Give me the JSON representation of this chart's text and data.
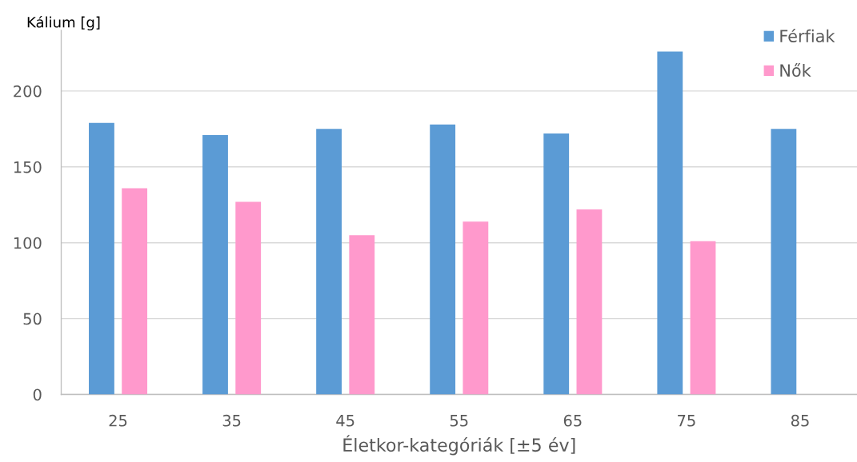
{
  "chart_data": {
    "type": "bar",
    "categories": [
      "25",
      "35",
      "45",
      "55",
      "65",
      "75",
      "85"
    ],
    "series": [
      {
        "name": "Férfiak",
        "color": "#5b9bd5",
        "values": [
          179,
          171,
          175,
          178,
          172,
          226,
          175
        ]
      },
      {
        "name": "Nők",
        "color": "#ff99cc",
        "values": [
          136,
          127,
          105,
          114,
          122,
          101,
          null
        ]
      }
    ],
    "xlabel": "Életkor-kategóriák [±5 év]",
    "ylabel": "Kálium [g]",
    "ylim": [
      0,
      240
    ],
    "yticks": [
      0,
      50,
      100,
      150,
      200
    ],
    "grid": "y",
    "legend": "top right"
  }
}
